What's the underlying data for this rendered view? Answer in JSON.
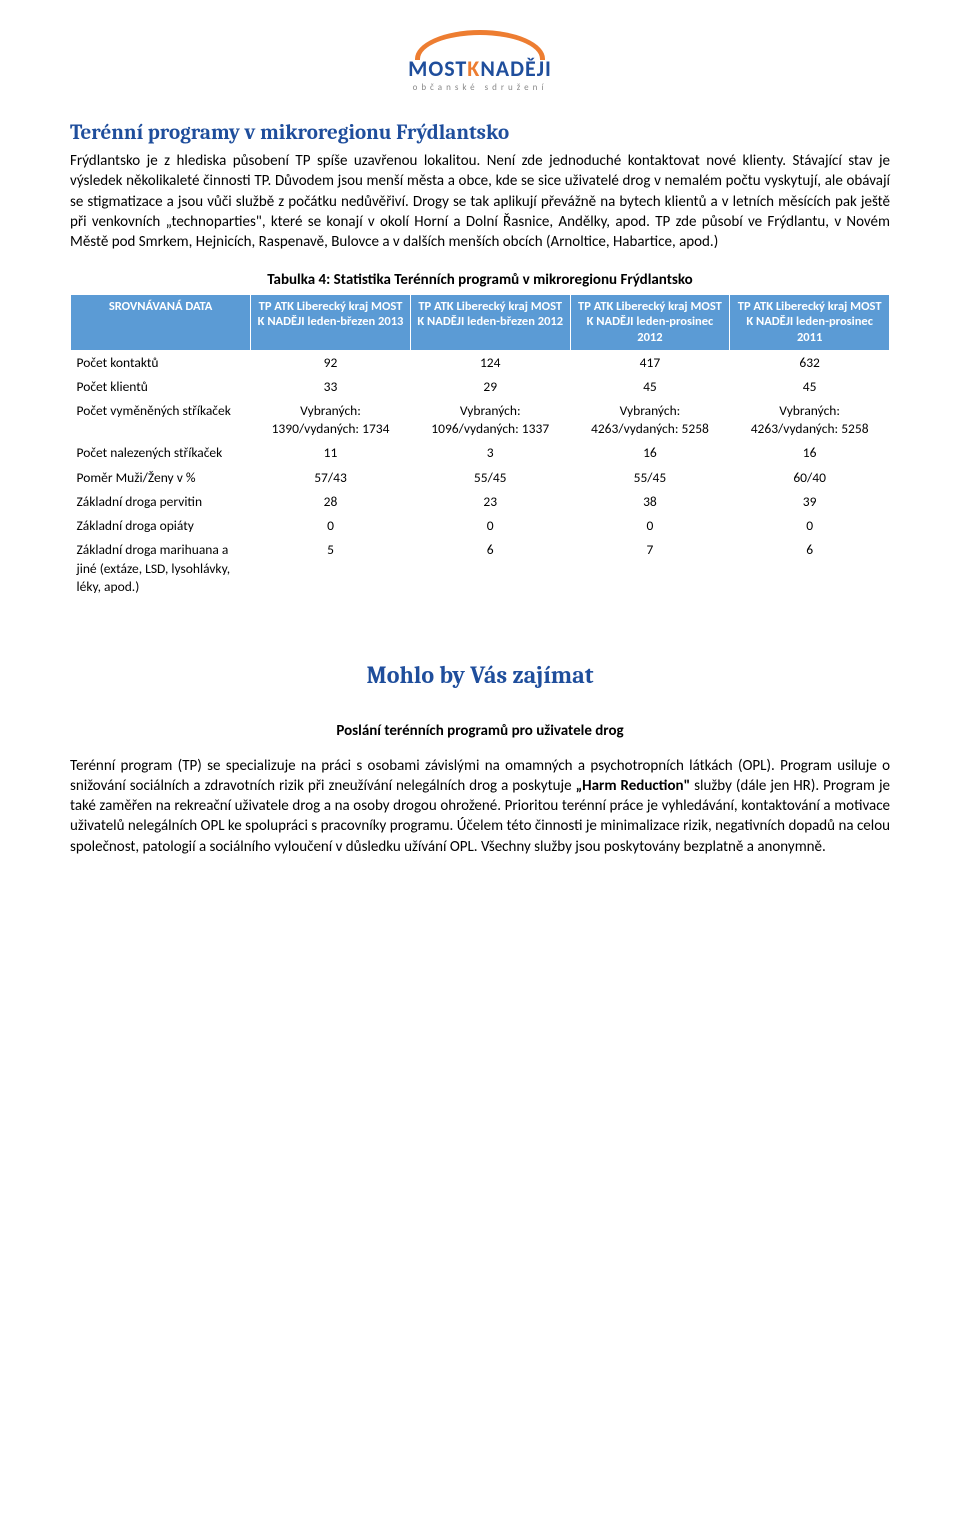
{
  "logo": {
    "most": "MOST",
    "k": "K",
    "nadeji": "NADĚJI",
    "sub": "občanské sdružení"
  },
  "section1": {
    "heading": "Terénní programy v mikroregionu Frýdlantsko",
    "paragraph_html": "Frýdlantsko je z hlediska působení TP spíše uzavřenou lokalitou. Není zde jednoduché kontaktovat nové klienty. Stávající stav je výsledek několikaleté činnosti TP. Důvodem jsou menší města a obce, kde se sice uživatelé drog v nemalém počtu vyskytují, ale obávají se stigmatizace a jsou vůči službě z počátku nedůvěřiví. Drogy se tak aplikují převážně na bytech klientů a v letních měsících pak ještě při venkovních „technoparties\", které se konají v okolí Horní a Dolní Řasnice, Andělky, apod. TP zde působí ve Frýdlantu, v Novém Městě pod Smrkem, Hejnicích, Raspenavě, Bulovce a v dalších menších obcích (Arnoltice, Habartice, apod.)"
  },
  "table": {
    "caption": "Tabulka 4: Statistika Terénních programů v mikroregionu Frýdlantsko",
    "header_bg": "#5b9bd5",
    "header_color": "#ffffff",
    "col_widths": [
      "22%",
      "19.5%",
      "19.5%",
      "19.5%",
      "19.5%"
    ],
    "columns": [
      "SROVNÁVANÁ DATA",
      "TP ATK Liberecký kraj MOST K NADĚJI leden-březen 2013",
      "TP ATK Liberecký kraj MOST K NADĚJI leden-březen 2012",
      "TP ATK Liberecký kraj MOST K NADĚJI leden-prosinec 2012",
      "TP ATK Liberecký kraj MOST K NADĚJI leden-prosinec 2011"
    ],
    "rows": [
      {
        "label": "Počet kontaktů",
        "cells": [
          "92",
          "124",
          "417",
          "632"
        ]
      },
      {
        "label": "Počet klientů",
        "cells": [
          "33",
          "29",
          "45",
          "45"
        ]
      },
      {
        "label": "Počet vyměněných stříkaček",
        "cells": [
          "Vybraných: 1390/vydaných: 1734",
          "Vybraných: 1096/vydaných: 1337",
          "Vybraných: 4263/vydaných: 5258",
          "Vybraných: 4263/vydaných: 5258"
        ]
      },
      {
        "label": "Počet nalezených stříkaček",
        "cells": [
          "11",
          "3",
          "16",
          "16"
        ]
      },
      {
        "label": "Poměr Muži/Ženy v %",
        "cells": [
          "57/43",
          "55/45",
          "55/45",
          "60/40"
        ]
      },
      {
        "label": "Základní droga pervitin",
        "cells": [
          "28",
          "23",
          "38",
          "39"
        ]
      },
      {
        "label": "Základní droga opiáty",
        "cells": [
          "0",
          "0",
          "0",
          "0"
        ]
      },
      {
        "label": "Základní droga marihuana a jiné (extáze, LSD, lysohlávky, léky, apod.)",
        "cells": [
          "5",
          "6",
          "7",
          "6"
        ]
      }
    ]
  },
  "section2": {
    "heading": "Mohlo by Vás zajímat",
    "subheading": "Poslání terénních programů pro uživatele drog",
    "para_before_bold": "Terénní program (TP) se specializuje na práci s osobami závislými na omamných a psychotropních látkách (OPL). Program usiluje o snižování sociálních a zdravotních rizik při zneužívání nelegálních drog a poskytuje ",
    "bold_term": "„Harm Reduction\"",
    "para_after_bold": " služby (dále jen HR). Program je také zaměřen na rekreační uživatele drog a na osoby drogou ohrožené. Prioritou terénní práce je vyhledávání, kontaktování a motivace uživatelů nelegálních OPL ke spolupráci s pracovníky programu. Účelem této činnosti je minimalizace rizik, negativních dopadů na celou společnost, patologií a sociálního vyloučení v důsledku užívání OPL. Všechny služby jsou poskytovány bezplatně a anonymně."
  }
}
